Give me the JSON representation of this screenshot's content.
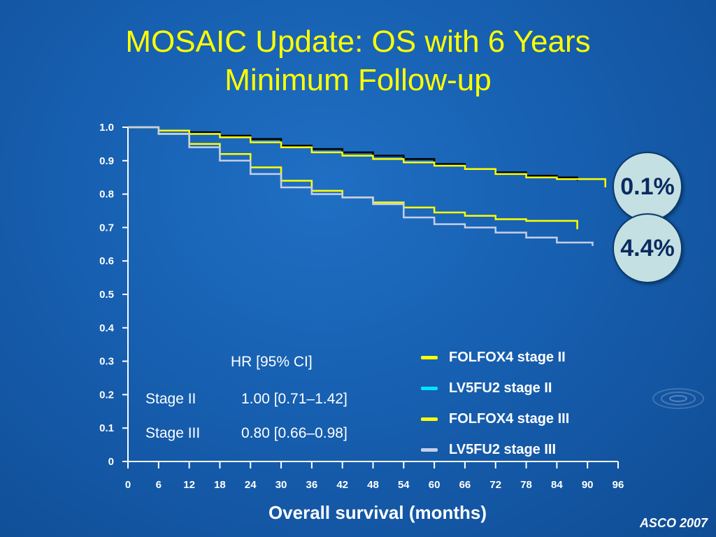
{
  "title": {
    "line1": "MOSAIC Update: OS with 6 Years",
    "line2": "Minimum Follow-up"
  },
  "badges": [
    "0.1%",
    "4.4%"
  ],
  "hr_table": {
    "header": "HR [95% CI]",
    "rows": [
      {
        "label": "Stage II",
        "value": "1.00 [0.71–1.42]"
      },
      {
        "label": "Stage III",
        "value": "0.80 [0.66–0.98]"
      }
    ]
  },
  "credit": "ASCO 2007",
  "colors": {
    "background": "#175fb0",
    "title": "#ffff00",
    "folfox4_stage_ii": "#ffff00",
    "lv5fu2_stage_ii": "#000000",
    "folfox4_stage_iii": "#ffff00",
    "lv5fu2_stage_iii": "#c5cfe8",
    "legend_lv5fu2_stage_ii": "#00e5ff"
  },
  "chart_data": {
    "type": "line",
    "title": "",
    "xlabel": "Overall survival (months)",
    "ylabel": "",
    "xlim": [
      0,
      96
    ],
    "ylim": [
      0,
      1.0
    ],
    "x_ticks": [
      "0",
      "6",
      "12",
      "18",
      "24",
      "30",
      "36",
      "42",
      "48",
      "54",
      "60",
      "66",
      "72",
      "78",
      "84",
      "90",
      "96"
    ],
    "y_ticks": [
      "0",
      "0.1",
      "0.2",
      "0.3",
      "0.4",
      "0.5",
      "0.6",
      "0.7",
      "0.8",
      "0.9",
      "1.0"
    ],
    "grid": false,
    "legend": {
      "placement": "bottom-right",
      "entries": [
        {
          "label": "FOLFOX4 stage II",
          "color": "#ffff00"
        },
        {
          "label": "LV5FU2 stage II",
          "color": "#00e5ff"
        },
        {
          "label": "FOLFOX4 stage III",
          "color": "#ffff00"
        },
        {
          "label": "LV5FU2 stage III",
          "color": "#c5cfe8"
        }
      ]
    },
    "series": [
      {
        "color": "#000000",
        "x": [
          0,
          6,
          12,
          18,
          24,
          30,
          36,
          42,
          48,
          54,
          60,
          66,
          72,
          78,
          84,
          88
        ],
        "y": [
          1.0,
          0.99,
          0.985,
          0.975,
          0.965,
          0.945,
          0.935,
          0.925,
          0.915,
          0.905,
          0.89,
          0.875,
          0.865,
          0.855,
          0.85,
          0.84
        ]
      },
      {
        "color": "#ffff00",
        "x": [
          0,
          6,
          12,
          18,
          24,
          30,
          36,
          42,
          48,
          54,
          60,
          66,
          72,
          78,
          84,
          90,
          93.5
        ],
        "y": [
          1.0,
          0.99,
          0.98,
          0.97,
          0.955,
          0.94,
          0.925,
          0.915,
          0.905,
          0.895,
          0.885,
          0.875,
          0.86,
          0.85,
          0.845,
          0.845,
          0.82
        ]
      },
      {
        "color": "#ffff00",
        "x": [
          0,
          6,
          12,
          18,
          24,
          30,
          36,
          42,
          48,
          54,
          60,
          66,
          72,
          78,
          84,
          88
        ],
        "y": [
          1.0,
          0.98,
          0.95,
          0.92,
          0.88,
          0.84,
          0.81,
          0.79,
          0.775,
          0.76,
          0.745,
          0.735,
          0.725,
          0.72,
          0.72,
          0.695
        ]
      },
      {
        "color": "#c5cfe8",
        "x": [
          0,
          6,
          12,
          18,
          24,
          30,
          36,
          42,
          48,
          54,
          60,
          66,
          72,
          78,
          84,
          91
        ],
        "y": [
          1.0,
          0.98,
          0.94,
          0.9,
          0.86,
          0.82,
          0.8,
          0.79,
          0.77,
          0.73,
          0.71,
          0.7,
          0.685,
          0.67,
          0.655,
          0.645
        ]
      }
    ]
  }
}
